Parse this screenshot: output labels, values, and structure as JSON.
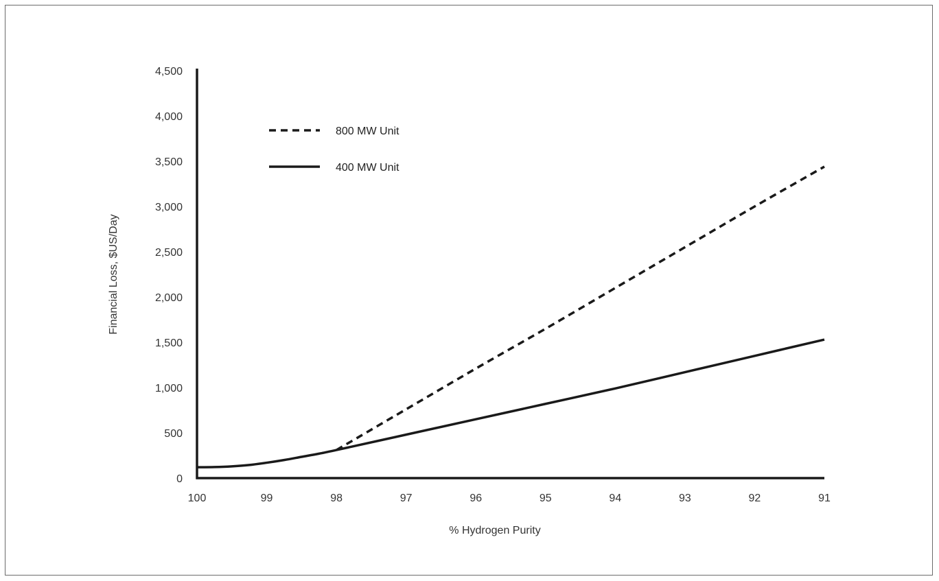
{
  "chart_data": {
    "type": "line",
    "title": "",
    "xlabel": "% Hydrogen Purity",
    "ylabel": "Financial Loss, $US/Day",
    "x_reversed": true,
    "xlim": [
      100,
      91
    ],
    "ylim": [
      0,
      4500
    ],
    "x_ticks": [
      100,
      99,
      98,
      97,
      96,
      95,
      94,
      93,
      92,
      91
    ],
    "x_tick_labels": [
      "100",
      "99",
      "98",
      "97",
      "96",
      "95",
      "94",
      "93",
      "92",
      "91"
    ],
    "y_ticks": [
      0,
      500,
      1000,
      1500,
      2000,
      2500,
      3000,
      3500,
      4000,
      4500
    ],
    "y_tick_labels": [
      "0",
      "500",
      "1,000",
      "1,500",
      "2,000",
      "2,500",
      "3,000",
      "3,500",
      "4,000",
      "4,500"
    ],
    "grid": false,
    "legend_position": "top-left",
    "series": [
      {
        "name": "800 MW Unit",
        "style": "dashed",
        "color": "#1a1a1a",
        "x": [
          98,
          97,
          96,
          95,
          94,
          93,
          92,
          91
        ],
        "y": [
          310,
          760,
          1210,
          1650,
          2100,
          2550,
          3000,
          3440
        ]
      },
      {
        "name": "400 MW Unit",
        "style": "solid",
        "color": "#1a1a1a",
        "x": [
          100,
          99.75,
          99.5,
          99.25,
          99,
          98.75,
          98.5,
          98.25,
          98,
          97,
          96,
          95,
          94,
          93,
          92,
          91
        ],
        "y": [
          120,
          122,
          130,
          145,
          170,
          200,
          235,
          270,
          310,
          480,
          650,
          820,
          990,
          1170,
          1350,
          1530
        ]
      }
    ]
  }
}
